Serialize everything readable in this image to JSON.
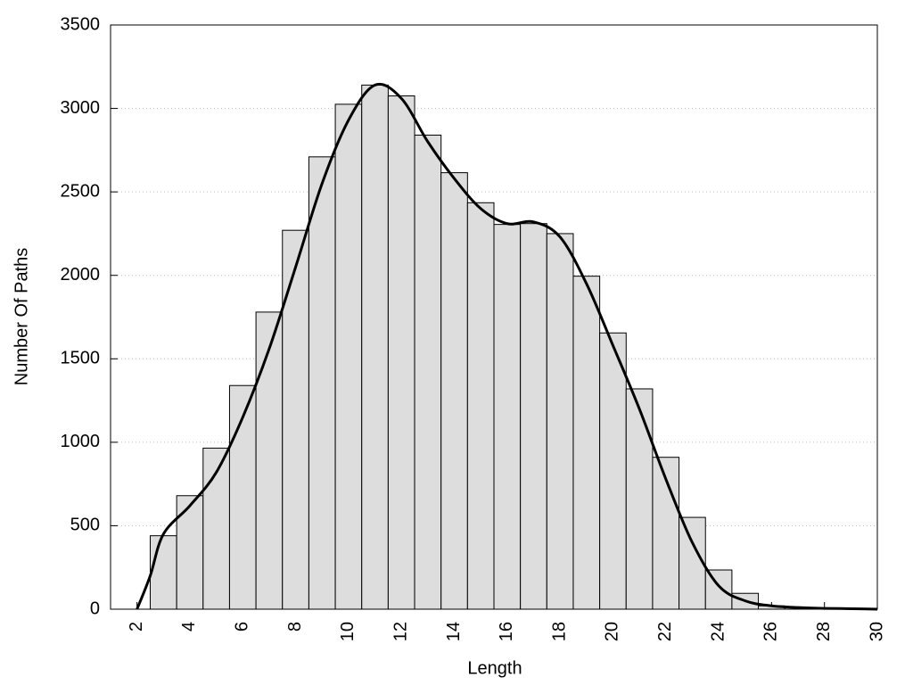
{
  "chart_data": {
    "type": "histogram",
    "x_label": "Length",
    "y_label": "Number Of Paths",
    "bins": [
      2.5,
      3.5,
      4.5,
      5.5,
      6.5,
      7.5,
      8.5,
      9.5,
      10.5,
      11.5,
      12.5,
      13.5,
      14.5,
      15.5,
      16.5,
      17.5,
      18.5,
      19.5,
      20.5,
      21.5,
      22.5,
      23.5,
      24.5,
      25.5,
      26.5,
      27.5,
      28.5,
      29.5
    ],
    "values": [
      440,
      680,
      965,
      1340,
      1780,
      2270,
      2710,
      3025,
      3140,
      3075,
      2840,
      2615,
      2435,
      2305,
      2310,
      2250,
      1995,
      1655,
      1320,
      910,
      550,
      235,
      95,
      20,
      8,
      5,
      3
    ],
    "color": "#dddddd",
    "density": {
      "x": [
        2,
        2.5,
        3,
        4,
        5,
        6,
        7,
        8,
        9,
        10,
        11,
        12,
        13,
        14,
        15,
        16,
        17,
        18,
        19,
        20,
        21,
        22,
        23,
        24,
        25,
        26,
        27,
        28,
        29,
        30
      ],
      "values": [
        0,
        200,
        450,
        620,
        820,
        1150,
        1560,
        2050,
        2550,
        2930,
        3140,
        3060,
        2800,
        2580,
        2400,
        2310,
        2320,
        2230,
        1950,
        1580,
        1200,
        780,
        400,
        140,
        50,
        20,
        10,
        5,
        3,
        0
      ],
      "color": "#000000"
    },
    "xlim": [
      1,
      30
    ],
    "xticks": [
      2,
      4,
      6,
      8,
      10,
      12,
      14,
      16,
      18,
      20,
      22,
      24,
      26,
      28,
      30
    ],
    "ylim": [
      0,
      3500
    ],
    "yticks": [
      0,
      500,
      1000,
      1500,
      2000,
      2500,
      3000,
      3500
    ],
    "grid": true
  }
}
